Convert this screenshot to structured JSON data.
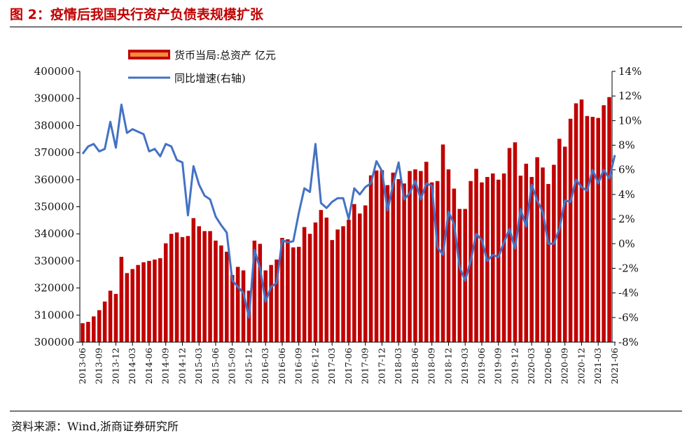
{
  "header": {
    "title": "图 2：疫情后我国央行资产负债表规模扩张"
  },
  "footer": {
    "source": "资料来源：Wind,浙商证券研究所"
  },
  "chart_data": {
    "type": "bar",
    "left_axis": {
      "min": 300000,
      "max": 400000,
      "step": 10000,
      "ticks": [
        "300000",
        "310000",
        "320000",
        "330000",
        "340000",
        "350000",
        "360000",
        "370000",
        "380000",
        "390000",
        "400000"
      ]
    },
    "right_axis": {
      "min": -8,
      "max": 14,
      "step": 2,
      "ticks": [
        "-8%",
        "-6%",
        "-4%",
        "-2%",
        "0%",
        "2%",
        "4%",
        "6%",
        "8%",
        "10%",
        "12%",
        "14%"
      ]
    },
    "x_tick_labels": [
      "2013-06",
      "2013-09",
      "2013-12",
      "2014-03",
      "2014-06",
      "2014-09",
      "2014-12",
      "2015-03",
      "2015-06",
      "2015-09",
      "2015-12",
      "2016-03",
      "2016-06",
      "2016-09",
      "2016-12",
      "2017-03",
      "2017-06",
      "2017-09",
      "2017-12",
      "2018-03",
      "2018-06",
      "2018-09",
      "2018-12",
      "2019-03",
      "2019-06",
      "2019-09",
      "2019-12",
      "2020-03",
      "2020-06",
      "2020-09",
      "2020-12",
      "2021-03",
      "2021-06"
    ],
    "legend": [
      {
        "name": "货币当局:总资产 亿元",
        "color": "#c00000"
      },
      {
        "name": "同比增速(右轴)",
        "color": "#4472c4"
      }
    ],
    "series": [
      {
        "name": "货币当局:总资产 亿元",
        "type": "bar",
        "axis": "left",
        "color": "#c00000",
        "values": [
          307000,
          307500,
          309500,
          311800,
          315000,
          319000,
          317800,
          331500,
          325500,
          327000,
          328500,
          329500,
          330000,
          330500,
          331000,
          336500,
          340000,
          340500,
          338800,
          339200,
          345800,
          342800,
          341000,
          341000,
          337500,
          335700,
          333400,
          324800,
          327800,
          326500,
          319000,
          337500,
          336300,
          326500,
          328500,
          330500,
          338500,
          338000,
          335000,
          335200,
          342500,
          340000,
          344200,
          348800,
          346000,
          337700,
          341600,
          342800,
          345200,
          351000,
          347500,
          350500,
          361600,
          363400,
          363500,
          358000,
          362600,
          360200,
          358600,
          363200,
          363800,
          363200,
          366600,
          359000,
          359500,
          373000,
          363800,
          356700,
          349200,
          349200,
          359500,
          364000,
          359000,
          361000,
          362300,
          360000,
          362300,
          371700,
          373800,
          361500,
          365900,
          361000,
          368300,
          364500,
          358400,
          365500,
          375100,
          372200,
          382500,
          388200,
          389600,
          383500,
          383200,
          382800,
          387500,
          390500
        ]
      },
      {
        "name": "同比增速(右轴)",
        "type": "line",
        "axis": "right",
        "color": "#4472c4",
        "values": [
          7.3,
          7.9,
          8.1,
          7.5,
          7.7,
          9.9,
          7.8,
          11.3,
          9.0,
          9.3,
          9.1,
          8.9,
          7.5,
          7.7,
          7.1,
          8.1,
          7.9,
          6.8,
          6.6,
          2.3,
          6.3,
          4.8,
          3.9,
          3.6,
          2.2,
          1.5,
          0.9,
          -3.0,
          -3.5,
          -4.0,
          -6.0,
          -0.5,
          -2.0,
          -4.7,
          -3.5,
          -3.2,
          0.3,
          0.1,
          0.2,
          2.5,
          4.5,
          4.2,
          8.1,
          3.3,
          2.9,
          3.4,
          3.7,
          3.7,
          2.0,
          4.5,
          4.0,
          4.6,
          4.9,
          6.7,
          5.9,
          2.7,
          4.8,
          6.6,
          3.6,
          4.1,
          5.1,
          3.6,
          4.9,
          4.7,
          -0.3,
          -0.9,
          2.6,
          1.6,
          -1.9,
          -3.0,
          -1.4,
          0.8,
          0.3,
          -1.4,
          -0.9,
          -1.1,
          0.1,
          1.2,
          -0.4,
          2.8,
          1.4,
          4.8,
          3.5,
          2.6,
          0.0,
          0.0,
          1.2,
          3.5,
          3.4,
          5.2,
          4.6,
          4.3,
          6.0,
          4.9,
          6.0,
          5.3,
          7.2
        ]
      }
    ]
  }
}
